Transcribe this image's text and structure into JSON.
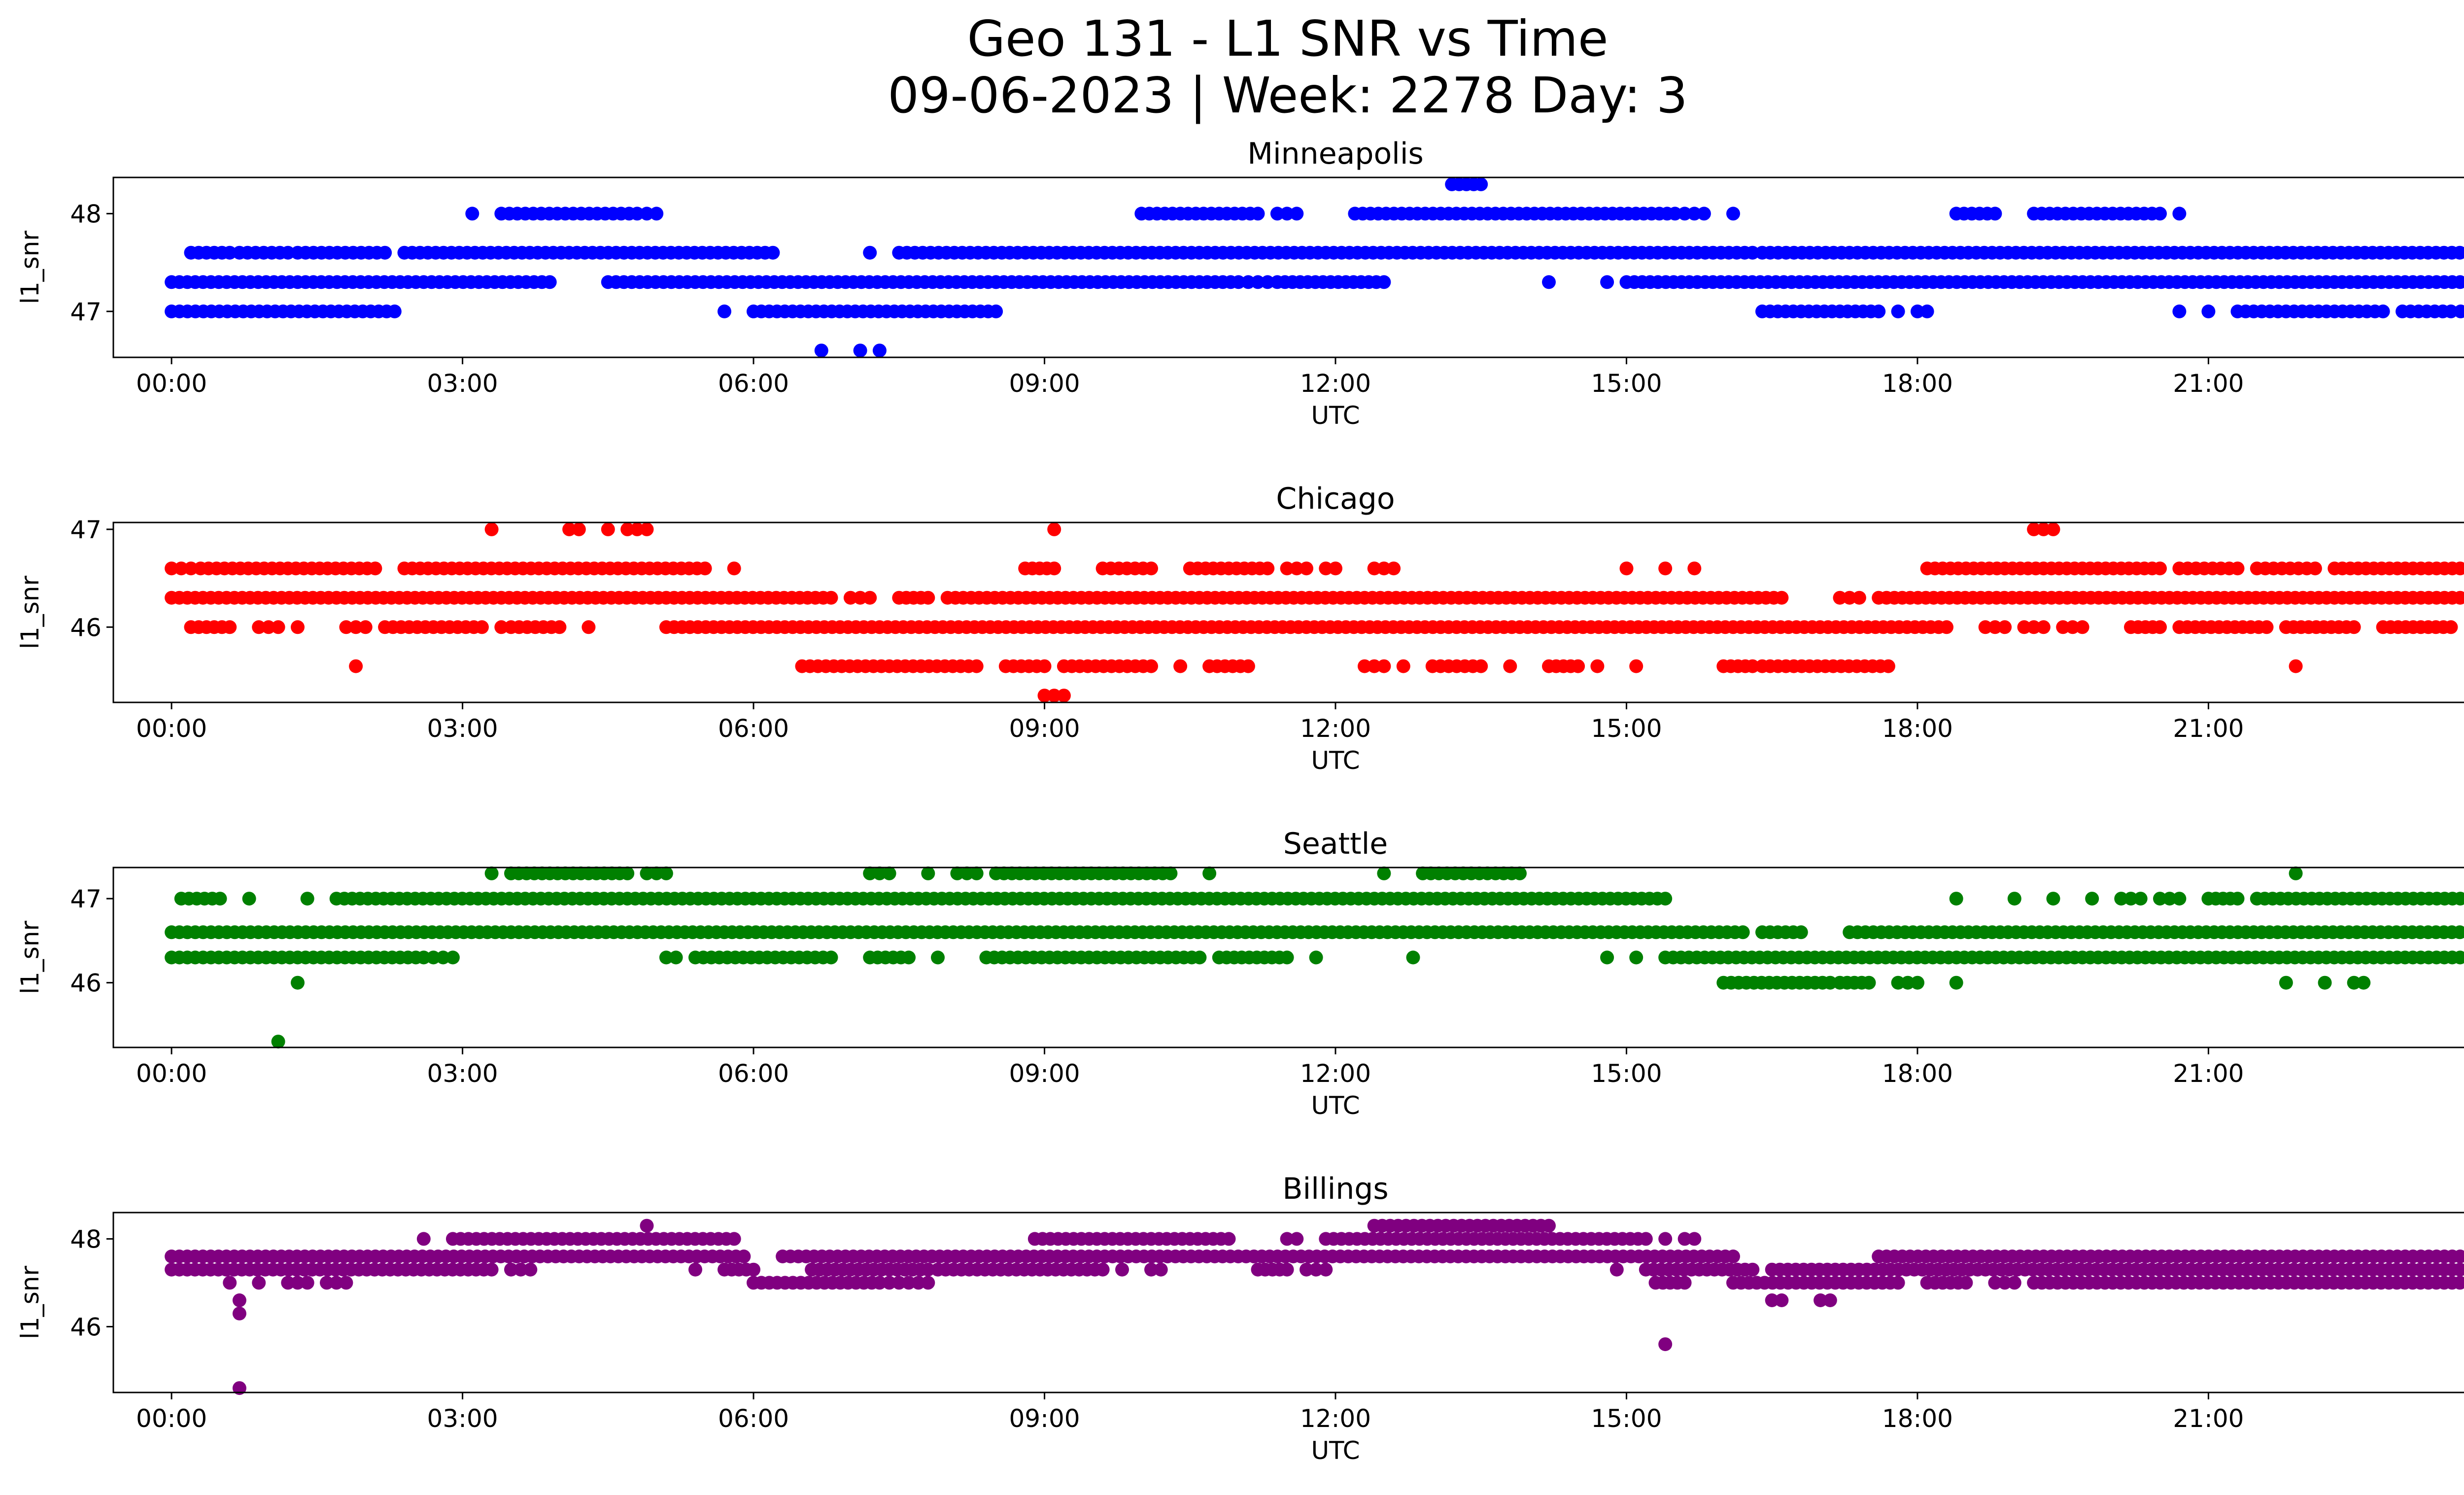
{
  "figure": {
    "title_line_1": "Geo 131 - L1 SNR vs Time",
    "title_line_2": "09-06-2023 | Week: 2278 Day: 3"
  },
  "chart_data": [
    {
      "type": "scatter",
      "title": "Minneapolis",
      "xlabel": "UTC",
      "ylabel": "l1_snr",
      "color": "#0000ff",
      "x_unit": "hours UTC",
      "xlim": [
        -0.6,
        24.6
      ],
      "ylim": [
        46.53,
        48.37
      ],
      "yticks": [
        47,
        48
      ],
      "yticklabels": [
        "47",
        "48"
      ],
      "xticks": [
        0,
        3,
        6,
        9,
        12,
        15,
        18,
        21,
        24
      ],
      "xticklabels": [
        "00:00",
        "03:00",
        "06:00",
        "09:00",
        "12:00",
        "15:00",
        "18:00",
        "21:00",
        "00:00"
      ],
      "segments": [
        {
          "y": 47.0,
          "x": [
            [
              0.0,
              2.3
            ],
            [
              5.7,
              5.7
            ],
            [
              6.0,
              8.5
            ],
            [
              16.4,
              17.6
            ],
            [
              17.8,
              17.8
            ],
            [
              18.0,
              18.1
            ],
            [
              20.7,
              20.7
            ],
            [
              21.0,
              21.0
            ],
            [
              21.3,
              22.8
            ],
            [
              23.0,
              23.5
            ],
            [
              23.6,
              24.0
            ]
          ]
        },
        {
          "y": 47.3,
          "x": [
            [
              0.0,
              3.9
            ],
            [
              4.5,
              8.5
            ],
            [
              8.5,
              11.0
            ],
            [
              11.1,
              11.3
            ],
            [
              11.4,
              12.5
            ],
            [
              14.2,
              14.2
            ],
            [
              14.8,
              14.8
            ],
            [
              15.0,
              24.0
            ]
          ]
        },
        {
          "y": 47.6,
          "x": [
            [
              0.2,
              0.6
            ],
            [
              0.7,
              1.2
            ],
            [
              1.3,
              2.2
            ],
            [
              2.4,
              6.2
            ],
            [
              7.2,
              7.2
            ],
            [
              7.5,
              16.3
            ],
            [
              16.4,
              24.0
            ]
          ]
        },
        {
          "y": 48.0,
          "x": [
            [
              3.1,
              3.1
            ],
            [
              3.4,
              4.8
            ],
            [
              4.9,
              5.0
            ],
            [
              10.0,
              11.2
            ],
            [
              11.4,
              11.6
            ],
            [
              12.2,
              15.5
            ],
            [
              15.6,
              15.8
            ],
            [
              16.1,
              16.1
            ],
            [
              18.4,
              18.8
            ],
            [
              19.2,
              20.5
            ],
            [
              20.7,
              20.7
            ]
          ]
        },
        {
          "y": 48.3,
          "x": [
            [
              13.2,
              13.5
            ]
          ]
        },
        {
          "y": 46.6,
          "x": [
            [
              6.7,
              6.7
            ],
            [
              7.1,
              7.1
            ],
            [
              7.3,
              7.3
            ]
          ]
        }
      ]
    },
    {
      "type": "scatter",
      "title": "Chicago",
      "xlabel": "UTC",
      "ylabel": "l1_snr",
      "color": "#ff0000",
      "x_unit": "hours UTC",
      "xlim": [
        -0.6,
        24.6
      ],
      "ylim": [
        45.23,
        47.07
      ],
      "yticks": [
        46,
        47
      ],
      "yticklabels": [
        "46",
        "47"
      ],
      "xticks": [
        0,
        3,
        6,
        9,
        12,
        15,
        18,
        21,
        24
      ],
      "xticklabels": [
        "00:00",
        "03:00",
        "06:00",
        "09:00",
        "12:00",
        "15:00",
        "18:00",
        "21:00",
        "00:00"
      ],
      "segments": [
        {
          "y": 46.6,
          "x": [
            [
              0.0,
              0.2
            ],
            [
              0.3,
              2.1
            ],
            [
              2.4,
              5.5
            ],
            [
              5.8,
              5.8
            ],
            [
              8.8,
              9.1
            ],
            [
              9.6,
              10.1
            ],
            [
              10.5,
              11.3
            ],
            [
              11.5,
              11.7
            ],
            [
              11.9,
              12.0
            ],
            [
              12.4,
              12.6
            ],
            [
              15.0,
              15.0
            ],
            [
              15.4,
              15.4
            ],
            [
              15.7,
              15.7
            ],
            [
              18.1,
              20.5
            ],
            [
              20.7,
              21.3
            ],
            [
              21.5,
              22.1
            ],
            [
              22.3,
              24.0
            ]
          ]
        },
        {
          "y": 46.3,
          "x": [
            [
              0.0,
              6.8
            ],
            [
              7.0,
              7.2
            ],
            [
              7.5,
              7.8
            ],
            [
              8.0,
              16.6
            ],
            [
              17.2,
              17.4
            ],
            [
              17.6,
              24.0
            ]
          ]
        },
        {
          "y": 46.0,
          "x": [
            [
              0.2,
              0.6
            ],
            [
              0.9,
              1.1
            ],
            [
              1.3,
              1.3
            ],
            [
              1.8,
              2.0
            ],
            [
              2.2,
              3.2
            ],
            [
              3.4,
              3.4
            ],
            [
              3.5,
              4.0
            ],
            [
              4.3,
              4.3
            ],
            [
              5.1,
              18.3
            ],
            [
              18.7,
              18.9
            ],
            [
              19.1,
              19.3
            ],
            [
              19.5,
              19.7
            ],
            [
              20.2,
              20.5
            ],
            [
              20.7,
              21.6
            ],
            [
              21.8,
              22.5
            ],
            [
              22.8,
              23.5
            ]
          ]
        },
        {
          "y": 45.6,
          "x": [
            [
              1.9,
              1.9
            ],
            [
              6.5,
              8.3
            ],
            [
              8.6,
              9.0
            ],
            [
              9.2,
              10.1
            ],
            [
              10.4,
              10.4
            ],
            [
              10.7,
              11.1
            ],
            [
              12.3,
              12.5
            ],
            [
              12.7,
              12.7
            ],
            [
              13.0,
              13.5
            ],
            [
              13.8,
              13.8
            ],
            [
              14.2,
              14.5
            ],
            [
              14.7,
              14.7
            ],
            [
              15.1,
              15.1
            ],
            [
              16.0,
              16.3
            ],
            [
              16.4,
              17.7
            ],
            [
              21.9,
              21.9
            ]
          ]
        },
        {
          "y": 47.0,
          "x": [
            [
              3.3,
              3.3
            ],
            [
              4.1,
              4.2
            ],
            [
              4.5,
              4.5
            ],
            [
              4.7,
              4.9
            ],
            [
              9.1,
              9.1
            ],
            [
              19.2,
              19.4
            ]
          ]
        },
        {
          "y": 45.3,
          "x": [
            [
              9.0,
              9.2
            ]
          ]
        }
      ]
    },
    {
      "type": "scatter",
      "title": "Seattle",
      "xlabel": "UTC",
      "ylabel": "l1_snr",
      "color": "#008000",
      "x_unit": "hours UTC",
      "xlim": [
        -0.6,
        24.6
      ],
      "ylim": [
        45.23,
        47.37
      ],
      "yticks": [
        46,
        47
      ],
      "yticklabels": [
        "46",
        "47"
      ],
      "xticks": [
        0,
        3,
        6,
        9,
        12,
        15,
        18,
        21,
        24
      ],
      "xticklabels": [
        "00:00",
        "03:00",
        "06:00",
        "09:00",
        "12:00",
        "15:00",
        "18:00",
        "21:00",
        "00:00"
      ],
      "segments": [
        {
          "y": 47.0,
          "x": [
            [
              0.1,
              0.5
            ],
            [
              0.8,
              0.8
            ],
            [
              1.4,
              1.4
            ],
            [
              1.7,
              15.4
            ],
            [
              18.4,
              18.4
            ],
            [
              19.0,
              19.0
            ],
            [
              19.4,
              19.4
            ],
            [
              19.8,
              19.8
            ],
            [
              20.1,
              20.3
            ],
            [
              20.5,
              20.7
            ],
            [
              21.0,
              21.3
            ],
            [
              21.5,
              24.0
            ]
          ]
        },
        {
          "y": 46.6,
          "x": [
            [
              0.0,
              16.2
            ],
            [
              16.4,
              16.8
            ],
            [
              17.3,
              24.0
            ]
          ]
        },
        {
          "y": 46.3,
          "x": [
            [
              0.0,
              2.6
            ],
            [
              2.7,
              2.9
            ],
            [
              5.1,
              5.2
            ],
            [
              5.4,
              6.8
            ],
            [
              7.2,
              7.6
            ],
            [
              7.9,
              7.9
            ],
            [
              8.4,
              10.6
            ],
            [
              10.8,
              11.5
            ],
            [
              11.8,
              11.8
            ],
            [
              12.8,
              12.8
            ],
            [
              14.8,
              14.8
            ],
            [
              15.1,
              15.1
            ],
            [
              15.4,
              24.0
            ]
          ]
        },
        {
          "y": 47.3,
          "x": [
            [
              3.3,
              3.3
            ],
            [
              3.5,
              4.7
            ],
            [
              4.9,
              5.1
            ],
            [
              7.2,
              7.4
            ],
            [
              7.8,
              7.8
            ],
            [
              8.1,
              8.3
            ],
            [
              8.5,
              10.3
            ],
            [
              10.7,
              10.7
            ],
            [
              12.5,
              12.5
            ],
            [
              12.9,
              13.9
            ],
            [
              21.9,
              21.9
            ]
          ]
        },
        {
          "y": 46.0,
          "x": [
            [
              1.3,
              1.3
            ],
            [
              16.0,
              17.1
            ],
            [
              17.2,
              17.5
            ],
            [
              17.8,
              18.0
            ],
            [
              18.4,
              18.4
            ],
            [
              21.8,
              21.8
            ],
            [
              22.2,
              22.2
            ],
            [
              22.5,
              22.6
            ]
          ]
        },
        {
          "y": 45.3,
          "x": [
            [
              1.1,
              1.1
            ]
          ]
        }
      ]
    },
    {
      "type": "scatter",
      "title": "Billings",
      "xlabel": "UTC",
      "ylabel": "l1_snr",
      "color": "#800080",
      "x_unit": "hours UTC",
      "xlim": [
        -0.6,
        24.6
      ],
      "ylim": [
        44.5,
        48.6
      ],
      "yticks": [
        46,
        48
      ],
      "yticklabels": [
        "46",
        "48"
      ],
      "xticks": [
        0,
        3,
        6,
        9,
        12,
        15,
        18,
        21,
        24
      ],
      "xticklabels": [
        "00:00",
        "03:00",
        "06:00",
        "09:00",
        "12:00",
        "15:00",
        "18:00",
        "21:00",
        "00:00"
      ],
      "segments": [
        {
          "y": 47.6,
          "x": [
            [
              0.0,
              5.9
            ],
            [
              6.3,
              16.1
            ],
            [
              17.6,
              24.0
            ]
          ]
        },
        {
          "y": 47.3,
          "x": [
            [
              0.0,
              3.3
            ],
            [
              3.5,
              3.7
            ],
            [
              5.4,
              5.4
            ],
            [
              5.7,
              6.0
            ],
            [
              6.6,
              7.8
            ],
            [
              7.9,
              9.6
            ],
            [
              9.8,
              9.8
            ],
            [
              10.1,
              10.2
            ],
            [
              11.2,
              11.5
            ],
            [
              11.7,
              11.9
            ],
            [
              14.9,
              14.9
            ],
            [
              15.2,
              16.3
            ],
            [
              16.5,
              24.0
            ]
          ]
        },
        {
          "y": 47.0,
          "x": [
            [
              0.6,
              0.6
            ],
            [
              0.9,
              0.9
            ],
            [
              1.2,
              1.4
            ],
            [
              1.6,
              1.8
            ],
            [
              6.0,
              7.3
            ],
            [
              7.4,
              7.6
            ],
            [
              7.7,
              7.8
            ],
            [
              15.3,
              15.6
            ],
            [
              16.1,
              17.8
            ],
            [
              18.1,
              18.5
            ],
            [
              18.8,
              19.0
            ],
            [
              19.2,
              24.0
            ]
          ]
        },
        {
          "y": 48.0,
          "x": [
            [
              2.6,
              2.6
            ],
            [
              2.9,
              5.8
            ],
            [
              8.9,
              10.9
            ],
            [
              11.5,
              11.6
            ],
            [
              11.9,
              15.2
            ],
            [
              15.4,
              15.4
            ],
            [
              15.6,
              15.7
            ]
          ]
        },
        {
          "y": 48.3,
          "x": [
            [
              4.9,
              4.9
            ],
            [
              12.4,
              14.2
            ]
          ]
        },
        {
          "y": 46.6,
          "x": [
            [
              0.7,
              0.7
            ],
            [
              16.5,
              16.6
            ],
            [
              17.0,
              17.1
            ]
          ]
        },
        {
          "y": 46.3,
          "x": [
            [
              0.7,
              0.7
            ]
          ]
        },
        {
          "y": 45.6,
          "x": [
            [
              15.4,
              15.4
            ]
          ]
        },
        {
          "y": 44.6,
          "x": [
            [
              0.7,
              0.7
            ]
          ]
        }
      ]
    }
  ]
}
